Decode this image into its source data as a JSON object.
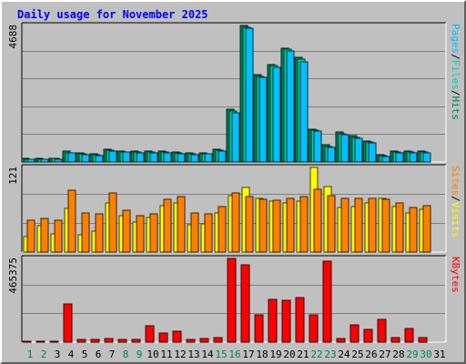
{
  "chart_data": {
    "type": "bar",
    "title": "Daily usage for November 2025",
    "categories": [
      "1",
      "2",
      "3",
      "4",
      "5",
      "6",
      "7",
      "8",
      "9",
      "10",
      "11",
      "12",
      "13",
      "14",
      "15",
      "16",
      "17",
      "18",
      "19",
      "20",
      "21",
      "22",
      "23",
      "24",
      "25",
      "26",
      "27",
      "28",
      "29",
      "30",
      "31"
    ],
    "weekend_days": [
      "1",
      "2",
      "8",
      "9",
      "15",
      "16",
      "22",
      "23",
      "29",
      "30"
    ],
    "colors": {
      "title": "#0000ff",
      "pages": "#00c0ff",
      "files": "#00d0a0",
      "hits": "#00805c",
      "sites": "#ff8000",
      "visits": "#ffff00",
      "kbytes": "#ff0000",
      "weekend_label": "#00805c",
      "weekday_label": "#000000",
      "plot_bg": "#c0c0c0",
      "grid": "#808080"
    },
    "panels": [
      {
        "id": "hits",
        "max_label": "4688",
        "ylim": [
          0,
          4688
        ],
        "legend": [
          {
            "text": "Pages",
            "color": "#00c0ff"
          },
          {
            "text": "Files",
            "color": "#00d0a0"
          },
          {
            "text": "Hits",
            "color": "#00805c"
          }
        ],
        "series": [
          {
            "name": "Hits",
            "values": [
              120,
              110,
              130,
              360,
              300,
              280,
              450,
              390,
              370,
              380,
              380,
              340,
              300,
              320,
              440,
              1820,
              4688,
              3000,
              3350,
              3920,
              3580,
              1140,
              590,
              1040,
              900,
              730,
              250,
              380,
              380,
              380,
              0
            ]
          },
          {
            "name": "Files",
            "values": [
              100,
              90,
              110,
              320,
              270,
              250,
              400,
              350,
              330,
              340,
              340,
              300,
              270,
              290,
              400,
              1760,
              4630,
              2940,
              3300,
              3860,
              3520,
              1080,
              540,
              980,
              840,
              680,
              220,
              340,
              330,
              340,
              0
            ]
          },
          {
            "name": "Pages",
            "values": [
              90,
              80,
              100,
              300,
              250,
              230,
              380,
              330,
              310,
              320,
              320,
              280,
              250,
              270,
              380,
              1700,
              4600,
              2900,
              3250,
              3800,
              3450,
              1050,
              500,
              950,
              800,
              650,
              200,
              320,
              310,
              320,
              0
            ]
          }
        ]
      },
      {
        "id": "visits",
        "max_label": "121",
        "ylim": [
          0,
          121
        ],
        "legend": [
          {
            "text": "Sites",
            "color": "#ff8000"
          },
          {
            "text": "Visits",
            "color": "#ffff00"
          }
        ],
        "series": [
          {
            "name": "Visits",
            "values": [
              22,
              38,
              26,
              63,
              25,
              30,
              70,
              52,
              43,
              50,
              66,
              70,
              39,
              40,
              56,
              81,
              92,
              77,
              73,
              70,
              73,
              121,
              94,
              64,
              65,
              70,
              77,
              65,
              56,
              61,
              0
            ]
          },
          {
            "name": "Sites",
            "values": [
              45,
              48,
              45,
              89,
              56,
              54,
              85,
              60,
              52,
              54,
              76,
              80,
              56,
              55,
              65,
              84,
              80,
              75,
              74,
              77,
              80,
              90,
              81,
              77,
              77,
              77,
              75,
              70,
              64,
              66,
              0
            ]
          }
        ]
      },
      {
        "id": "kbytes",
        "max_label": "465375",
        "ylim": [
          0,
          465375
        ],
        "legend": [
          {
            "text": "KBytes",
            "color": "#ff0000"
          }
        ],
        "series": [
          {
            "name": "KBytes",
            "values": [
              3000,
              3000,
              3000,
              210000,
              15000,
              15000,
              20000,
              15000,
              15000,
              93000,
              50000,
              60000,
              15000,
              20000,
              26000,
              465375,
              430000,
              150000,
              240000,
              235000,
              250000,
              150000,
              450000,
              20000,
              95000,
              70000,
              125000,
              25000,
              75000,
              25000,
              0
            ]
          }
        ]
      }
    ]
  }
}
